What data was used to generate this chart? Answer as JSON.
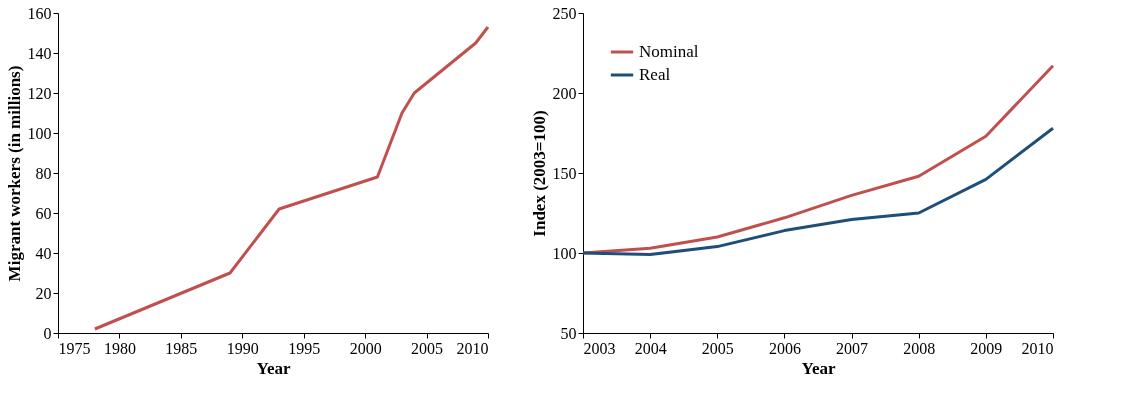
{
  "chart_data": [
    {
      "type": "line",
      "xlabel": "Year",
      "ylabel": "Migrant workers (in millions)",
      "xlim": [
        1975,
        2010
      ],
      "xticks": [
        1975,
        1980,
        1985,
        1990,
        1995,
        2000,
        2005,
        2010
      ],
      "ylim": [
        0,
        160
      ],
      "yticks": [
        0,
        20,
        40,
        60,
        80,
        100,
        120,
        140,
        160
      ],
      "grid": false,
      "series": [
        {
          "color": "#c0504d",
          "x": [
            1978,
            1989,
            1993,
            2001,
            2003,
            2004,
            2009,
            2010
          ],
          "values": [
            2,
            30,
            62,
            78,
            110,
            120,
            145,
            153
          ]
        }
      ]
    },
    {
      "type": "line",
      "xlabel": "Year",
      "ylabel": "Index (2003=100)",
      "xlim": [
        2003,
        2010
      ],
      "xticks": [
        2003,
        2004,
        2005,
        2006,
        2007,
        2008,
        2009,
        2010
      ],
      "ylim": [
        50,
        250
      ],
      "yticks": [
        50,
        100,
        150,
        200,
        250
      ],
      "grid": false,
      "legend": "top left",
      "x": [
        2003,
        2004,
        2005,
        2006,
        2007,
        2008,
        2009,
        2010
      ],
      "series": [
        {
          "name": "Nominal",
          "color": "#c0504d",
          "values": [
            100,
            103,
            110,
            122,
            136,
            148,
            173,
            217
          ]
        },
        {
          "name": "Real",
          "color": "#1f4e79",
          "values": [
            100,
            99,
            104,
            114,
            121,
            125,
            146,
            178
          ]
        }
      ]
    }
  ]
}
